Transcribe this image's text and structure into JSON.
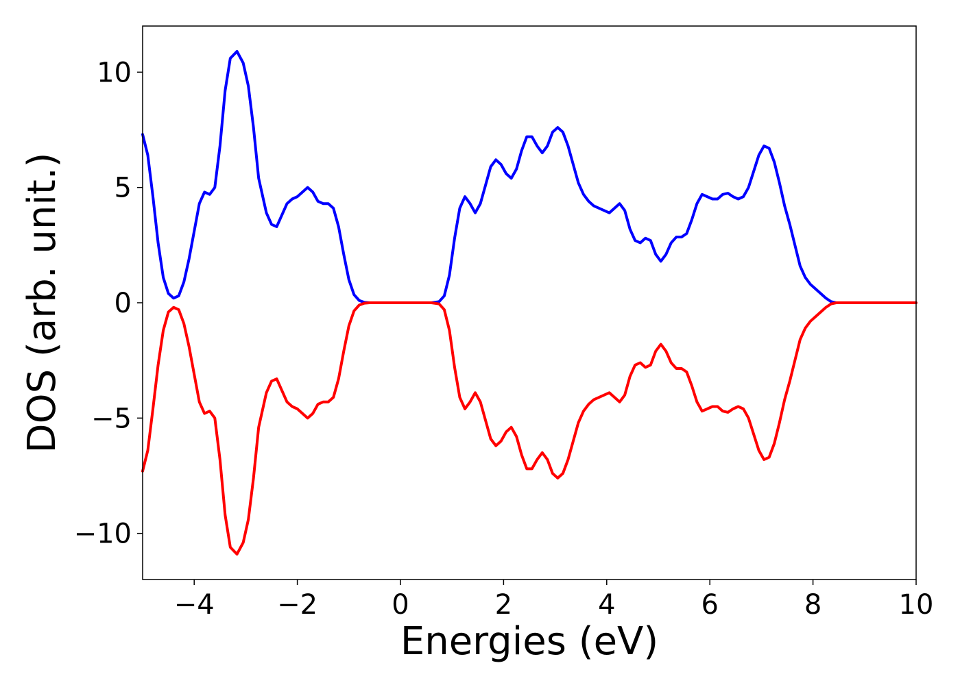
{
  "chart_data": {
    "type": "line",
    "title": "",
    "xlabel": "Energies (eV)",
    "ylabel": "DOS (arb. unit.)",
    "xlim": [
      -5,
      10
    ],
    "ylim": [
      -12,
      12
    ],
    "x_ticks": [
      -4,
      -2,
      0,
      2,
      4,
      6,
      8,
      10
    ],
    "x_tick_labels": [
      "−4",
      "−2",
      "0",
      "2",
      "4",
      "6",
      "8",
      "10"
    ],
    "y_ticks": [
      -10,
      -5,
      0,
      5,
      10
    ],
    "y_tick_labels": [
      "−10",
      "−5",
      "0",
      "5",
      "10"
    ],
    "grid": false,
    "legend": "none",
    "series": [
      {
        "color": "#0000ff",
        "points": [
          [
            -5.0,
            7.3
          ],
          [
            -4.9,
            6.4
          ],
          [
            -4.8,
            4.6
          ],
          [
            -4.7,
            2.6
          ],
          [
            -4.6,
            1.1
          ],
          [
            -4.5,
            0.4
          ],
          [
            -4.4,
            0.2
          ],
          [
            -4.3,
            0.3
          ],
          [
            -4.2,
            0.9
          ],
          [
            -4.1,
            1.9
          ],
          [
            -4.0,
            3.1
          ],
          [
            -3.9,
            4.3
          ],
          [
            -3.8,
            4.8
          ],
          [
            -3.7,
            4.7
          ],
          [
            -3.6,
            5.0
          ],
          [
            -3.5,
            6.8
          ],
          [
            -3.4,
            9.2
          ],
          [
            -3.3,
            10.6
          ],
          [
            -3.17,
            10.9
          ],
          [
            -3.05,
            10.4
          ],
          [
            -2.95,
            9.4
          ],
          [
            -2.85,
            7.6
          ],
          [
            -2.75,
            5.4
          ],
          [
            -2.6,
            3.9
          ],
          [
            -2.5,
            3.4
          ],
          [
            -2.4,
            3.3
          ],
          [
            -2.3,
            3.8
          ],
          [
            -2.2,
            4.3
          ],
          [
            -2.1,
            4.5
          ],
          [
            -2.0,
            4.6
          ],
          [
            -1.9,
            4.8
          ],
          [
            -1.8,
            5.0
          ],
          [
            -1.7,
            4.8
          ],
          [
            -1.6,
            4.4
          ],
          [
            -1.5,
            4.3
          ],
          [
            -1.4,
            4.3
          ],
          [
            -1.3,
            4.1
          ],
          [
            -1.2,
            3.3
          ],
          [
            -1.1,
            2.1
          ],
          [
            -1.0,
            1.0
          ],
          [
            -0.9,
            0.35
          ],
          [
            -0.8,
            0.1
          ],
          [
            -0.7,
            0.02
          ],
          [
            -0.6,
            0.0
          ],
          [
            -0.4,
            0.0
          ],
          [
            0.0,
            0.0
          ],
          [
            0.4,
            0.0
          ],
          [
            0.6,
            0.0
          ],
          [
            0.75,
            0.05
          ],
          [
            0.85,
            0.3
          ],
          [
            0.95,
            1.2
          ],
          [
            1.05,
            2.8
          ],
          [
            1.15,
            4.1
          ],
          [
            1.25,
            4.6
          ],
          [
            1.35,
            4.3
          ],
          [
            1.45,
            3.9
          ],
          [
            1.55,
            4.3
          ],
          [
            1.65,
            5.1
          ],
          [
            1.75,
            5.9
          ],
          [
            1.85,
            6.2
          ],
          [
            1.95,
            6.0
          ],
          [
            2.05,
            5.6
          ],
          [
            2.15,
            5.4
          ],
          [
            2.25,
            5.8
          ],
          [
            2.35,
            6.6
          ],
          [
            2.45,
            7.2
          ],
          [
            2.55,
            7.2
          ],
          [
            2.65,
            6.8
          ],
          [
            2.75,
            6.5
          ],
          [
            2.85,
            6.8
          ],
          [
            2.95,
            7.4
          ],
          [
            3.05,
            7.6
          ],
          [
            3.15,
            7.4
          ],
          [
            3.25,
            6.8
          ],
          [
            3.35,
            6.0
          ],
          [
            3.45,
            5.2
          ],
          [
            3.55,
            4.7
          ],
          [
            3.65,
            4.4
          ],
          [
            3.75,
            4.2
          ],
          [
            3.85,
            4.1
          ],
          [
            3.95,
            4.0
          ],
          [
            4.05,
            3.9
          ],
          [
            4.15,
            4.1
          ],
          [
            4.25,
            4.3
          ],
          [
            4.35,
            4.0
          ],
          [
            4.45,
            3.2
          ],
          [
            4.55,
            2.7
          ],
          [
            4.65,
            2.6
          ],
          [
            4.75,
            2.8
          ],
          [
            4.85,
            2.7
          ],
          [
            4.95,
            2.1
          ],
          [
            5.05,
            1.8
          ],
          [
            5.15,
            2.1
          ],
          [
            5.25,
            2.6
          ],
          [
            5.35,
            2.85
          ],
          [
            5.45,
            2.85
          ],
          [
            5.55,
            3.0
          ],
          [
            5.65,
            3.6
          ],
          [
            5.75,
            4.3
          ],
          [
            5.85,
            4.7
          ],
          [
            5.95,
            4.6
          ],
          [
            6.05,
            4.5
          ],
          [
            6.15,
            4.5
          ],
          [
            6.25,
            4.7
          ],
          [
            6.35,
            4.75
          ],
          [
            6.45,
            4.6
          ],
          [
            6.55,
            4.5
          ],
          [
            6.65,
            4.6
          ],
          [
            6.75,
            5.0
          ],
          [
            6.85,
            5.7
          ],
          [
            6.95,
            6.4
          ],
          [
            7.05,
            6.8
          ],
          [
            7.15,
            6.7
          ],
          [
            7.25,
            6.1
          ],
          [
            7.35,
            5.2
          ],
          [
            7.45,
            4.2
          ],
          [
            7.55,
            3.4
          ],
          [
            7.65,
            2.5
          ],
          [
            7.75,
            1.6
          ],
          [
            7.85,
            1.1
          ],
          [
            7.95,
            0.8
          ],
          [
            8.05,
            0.6
          ],
          [
            8.15,
            0.4
          ],
          [
            8.25,
            0.2
          ],
          [
            8.35,
            0.05
          ],
          [
            8.45,
            0.0
          ],
          [
            8.6,
            0.0
          ],
          [
            9.0,
            0.0
          ],
          [
            10.0,
            0.0
          ]
        ]
      },
      {
        "color": "#ff0000",
        "points": [
          [
            -5.0,
            -7.3
          ],
          [
            -4.9,
            -6.4
          ],
          [
            -4.8,
            -4.6
          ],
          [
            -4.7,
            -2.7
          ],
          [
            -4.6,
            -1.2
          ],
          [
            -4.5,
            -0.4
          ],
          [
            -4.4,
            -0.2
          ],
          [
            -4.3,
            -0.3
          ],
          [
            -4.2,
            -0.9
          ],
          [
            -4.1,
            -1.9
          ],
          [
            -4.0,
            -3.1
          ],
          [
            -3.9,
            -4.3
          ],
          [
            -3.8,
            -4.8
          ],
          [
            -3.7,
            -4.7
          ],
          [
            -3.6,
            -5.0
          ],
          [
            -3.5,
            -6.8
          ],
          [
            -3.4,
            -9.2
          ],
          [
            -3.3,
            -10.6
          ],
          [
            -3.17,
            -10.9
          ],
          [
            -3.05,
            -10.4
          ],
          [
            -2.95,
            -9.4
          ],
          [
            -2.85,
            -7.6
          ],
          [
            -2.75,
            -5.4
          ],
          [
            -2.6,
            -3.9
          ],
          [
            -2.5,
            -3.4
          ],
          [
            -2.4,
            -3.3
          ],
          [
            -2.3,
            -3.8
          ],
          [
            -2.2,
            -4.3
          ],
          [
            -2.1,
            -4.5
          ],
          [
            -2.0,
            -4.6
          ],
          [
            -1.9,
            -4.8
          ],
          [
            -1.8,
            -5.0
          ],
          [
            -1.7,
            -4.8
          ],
          [
            -1.6,
            -4.4
          ],
          [
            -1.5,
            -4.3
          ],
          [
            -1.4,
            -4.3
          ],
          [
            -1.3,
            -4.1
          ],
          [
            -1.2,
            -3.3
          ],
          [
            -1.1,
            -2.1
          ],
          [
            -1.0,
            -1.0
          ],
          [
            -0.9,
            -0.35
          ],
          [
            -0.8,
            -0.1
          ],
          [
            -0.7,
            -0.02
          ],
          [
            -0.6,
            0.0
          ],
          [
            -0.4,
            0.0
          ],
          [
            0.0,
            0.0
          ],
          [
            0.4,
            0.0
          ],
          [
            0.6,
            0.0
          ],
          [
            0.75,
            -0.05
          ],
          [
            0.85,
            -0.3
          ],
          [
            0.95,
            -1.2
          ],
          [
            1.05,
            -2.8
          ],
          [
            1.15,
            -4.1
          ],
          [
            1.25,
            -4.6
          ],
          [
            1.35,
            -4.3
          ],
          [
            1.45,
            -3.9
          ],
          [
            1.55,
            -4.3
          ],
          [
            1.65,
            -5.1
          ],
          [
            1.75,
            -5.9
          ],
          [
            1.85,
            -6.2
          ],
          [
            1.95,
            -6.0
          ],
          [
            2.05,
            -5.6
          ],
          [
            2.15,
            -5.4
          ],
          [
            2.25,
            -5.8
          ],
          [
            2.35,
            -6.6
          ],
          [
            2.45,
            -7.2
          ],
          [
            2.55,
            -7.2
          ],
          [
            2.65,
            -6.8
          ],
          [
            2.75,
            -6.5
          ],
          [
            2.85,
            -6.8
          ],
          [
            2.95,
            -7.4
          ],
          [
            3.05,
            -7.6
          ],
          [
            3.15,
            -7.4
          ],
          [
            3.25,
            -6.8
          ],
          [
            3.35,
            -6.0
          ],
          [
            3.45,
            -5.2
          ],
          [
            3.55,
            -4.7
          ],
          [
            3.65,
            -4.4
          ],
          [
            3.75,
            -4.2
          ],
          [
            3.85,
            -4.1
          ],
          [
            3.95,
            -4.0
          ],
          [
            4.05,
            -3.9
          ],
          [
            4.15,
            -4.1
          ],
          [
            4.25,
            -4.3
          ],
          [
            4.35,
            -4.0
          ],
          [
            4.45,
            -3.2
          ],
          [
            4.55,
            -2.7
          ],
          [
            4.65,
            -2.6
          ],
          [
            4.75,
            -2.8
          ],
          [
            4.85,
            -2.7
          ],
          [
            4.95,
            -2.1
          ],
          [
            5.05,
            -1.8
          ],
          [
            5.15,
            -2.1
          ],
          [
            5.25,
            -2.6
          ],
          [
            5.35,
            -2.85
          ],
          [
            5.45,
            -2.85
          ],
          [
            5.55,
            -3.0
          ],
          [
            5.65,
            -3.6
          ],
          [
            5.75,
            -4.3
          ],
          [
            5.85,
            -4.7
          ],
          [
            5.95,
            -4.6
          ],
          [
            6.05,
            -4.5
          ],
          [
            6.15,
            -4.5
          ],
          [
            6.25,
            -4.7
          ],
          [
            6.35,
            -4.75
          ],
          [
            6.45,
            -4.6
          ],
          [
            6.55,
            -4.5
          ],
          [
            6.65,
            -4.6
          ],
          [
            6.75,
            -5.0
          ],
          [
            6.85,
            -5.7
          ],
          [
            6.95,
            -6.4
          ],
          [
            7.05,
            -6.8
          ],
          [
            7.15,
            -6.7
          ],
          [
            7.25,
            -6.1
          ],
          [
            7.35,
            -5.2
          ],
          [
            7.45,
            -4.2
          ],
          [
            7.55,
            -3.4
          ],
          [
            7.65,
            -2.5
          ],
          [
            7.75,
            -1.6
          ],
          [
            7.85,
            -1.1
          ],
          [
            7.95,
            -0.8
          ],
          [
            8.05,
            -0.6
          ],
          [
            8.15,
            -0.4
          ],
          [
            8.25,
            -0.2
          ],
          [
            8.35,
            -0.05
          ],
          [
            8.45,
            0.0
          ],
          [
            8.6,
            0.0
          ],
          [
            9.0,
            0.0
          ],
          [
            10.0,
            0.0
          ]
        ]
      }
    ]
  }
}
